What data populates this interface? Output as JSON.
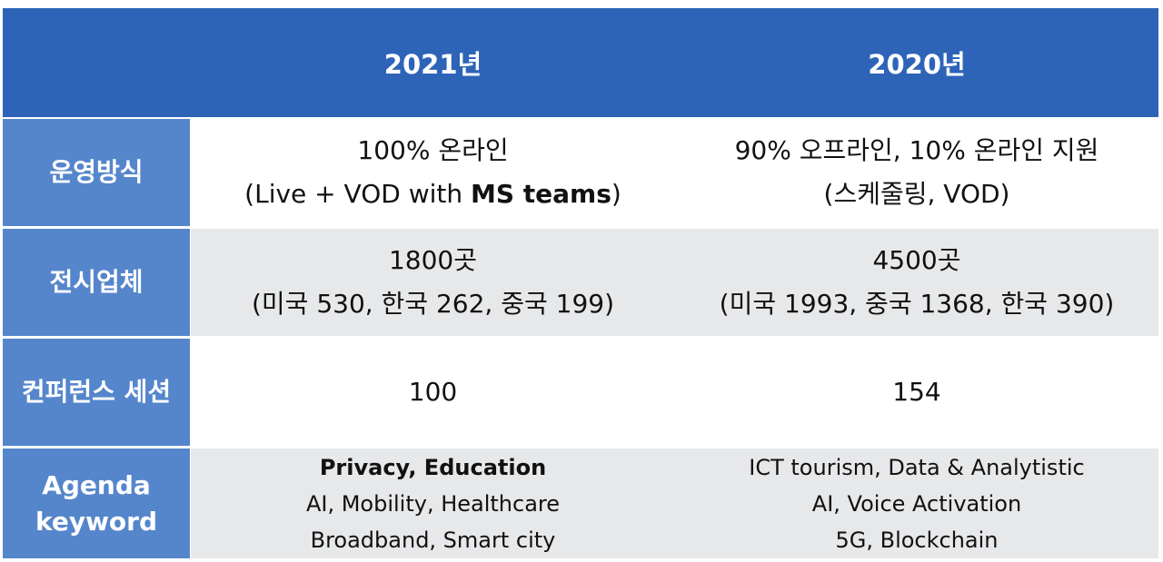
{
  "header": {
    "col1": "2021년",
    "col2": "2020년"
  },
  "rows": {
    "operation": {
      "label": "운영방식",
      "col1_line1": "100% 온라인",
      "col1_line2_pre": "(Live + VOD with ",
      "col1_line2_bold": "MS teams",
      "col1_line2_post": ")",
      "col2_line1": "90% 오프라인, 10% 온라인 지원",
      "col2_line2": "(스케줄링, VOD)"
    },
    "exhibitors": {
      "label": "전시업체",
      "col1_line1": "1800곳",
      "col1_line2": "(미국 530, 한국 262, 중국 199)",
      "col2_line1": "4500곳",
      "col2_line2": "(미국 1993, 중국 1368, 한국 390)"
    },
    "sessions": {
      "label": "컨퍼런스 세션",
      "col1": "100",
      "col2": "154"
    },
    "agenda": {
      "label_line1": "Agenda",
      "label_line2": "keyword",
      "col1_line1": "Privacy, Education",
      "col1_line2": "AI, Mobility, Healthcare",
      "col1_line3": "Broadband, Smart city",
      "col2_line1": "ICT tourism, Data & Analytistic",
      "col2_line2": "AI, Voice Activation",
      "col2_line3": "5G, Blockchain"
    }
  },
  "colors": {
    "header_bg": "#2e64b8",
    "label_bg": "#5586cc",
    "alt_row_bg": "#e7e8ea"
  }
}
